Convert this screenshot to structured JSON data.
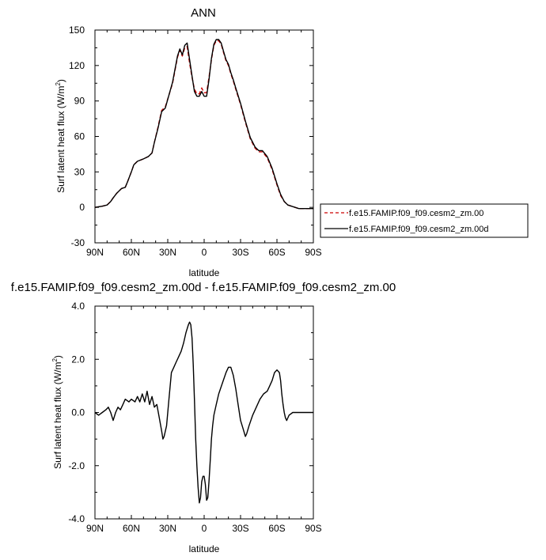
{
  "chart_data": [
    {
      "type": "line",
      "title": "ANN",
      "xlabel": "latitude",
      "ylabel": "Surf latent heat flux (W/m",
      "ylabel_sup": "2",
      "ylabel_close": ")",
      "xlim": [
        90,
        -90
      ],
      "ylim": [
        -30,
        150
      ],
      "xticks": [
        90,
        60,
        30,
        0,
        -30,
        -60,
        -90
      ],
      "xtick_labels": [
        "90N",
        "60N",
        "30N",
        "0",
        "30S",
        "60S",
        "90S"
      ],
      "yticks": [
        -30,
        0,
        30,
        60,
        90,
        120,
        150
      ],
      "ytick_labels": [
        "-30",
        "0",
        "30",
        "60",
        "90",
        "120",
        "150"
      ],
      "legend_position": "right",
      "series": [
        {
          "name": "f.e15.FAMIP.f09_f09.cesm2_zm.00",
          "color": "#cc0000",
          "dash": "dashed",
          "x": [
            90,
            84,
            80,
            77,
            75,
            72,
            68,
            65,
            63,
            60,
            58,
            55,
            50,
            46,
            43,
            41,
            38,
            35,
            32,
            29,
            26,
            24,
            22,
            20,
            18,
            16,
            14,
            12,
            10,
            8,
            6,
            4,
            2,
            0,
            -2,
            -4,
            -6,
            -8,
            -10,
            -12,
            -14,
            -16,
            -18,
            -20,
            -22,
            -24,
            -26,
            -30,
            -34,
            -38,
            -42,
            -45,
            -48,
            -52,
            -56,
            -60,
            -63,
            -66,
            -69,
            -72,
            -75,
            -78,
            -81,
            -84,
            -90
          ],
          "y": [
            0,
            1,
            2,
            5,
            8,
            12,
            16,
            17,
            22,
            30,
            36,
            39,
            41,
            43,
            46,
            55,
            68,
            82,
            85,
            95,
            105,
            116,
            127,
            133,
            128,
            135,
            136,
            122,
            110,
            100,
            96,
            96,
            101,
            97,
            97,
            110,
            125,
            137,
            141,
            141,
            138,
            131,
            124,
            120,
            113,
            107,
            100,
            87,
            72,
            58,
            50,
            47,
            47,
            42,
            32,
            19,
            10,
            5,
            2,
            1,
            0,
            -1,
            -1,
            -1,
            -1
          ]
        },
        {
          "name": "f.e15.FAMIP.f09_f09.cesm2_zm.00d",
          "color": "#000000",
          "dash": "solid",
          "x": [
            90,
            84,
            80,
            77,
            75,
            72,
            68,
            65,
            63,
            60,
            58,
            55,
            50,
            46,
            43,
            41,
            38,
            35,
            32,
            29,
            26,
            24,
            22,
            20,
            18,
            16,
            14,
            12,
            10,
            8,
            6,
            4,
            2,
            0,
            -2,
            -4,
            -6,
            -8,
            -10,
            -12,
            -14,
            -16,
            -18,
            -20,
            -22,
            -24,
            -26,
            -30,
            -34,
            -38,
            -42,
            -45,
            -48,
            -52,
            -56,
            -60,
            -63,
            -66,
            -69,
            -72,
            -75,
            -78,
            -81,
            -84,
            -90
          ],
          "y": [
            0,
            1,
            2,
            5,
            8,
            12,
            16,
            17,
            22,
            30,
            36,
            39,
            41,
            43,
            46,
            55,
            67,
            81,
            84,
            95,
            106,
            117,
            128,
            134,
            129,
            137,
            139,
            125,
            111,
            98,
            94,
            94,
            98,
            94,
            94,
            108,
            126,
            138,
            142,
            142,
            139,
            132,
            125,
            121,
            114,
            108,
            101,
            88,
            73,
            59,
            51,
            48,
            48,
            43,
            33,
            20,
            11,
            5,
            2,
            1,
            0,
            -1,
            -1,
            -1,
            -1
          ]
        }
      ]
    },
    {
      "type": "line",
      "title": "f.e15.FAMIP.f09_f09.cesm2_zm.00d - f.e15.FAMIP.f09_f09.cesm2_zm.00",
      "xlabel": "latitude",
      "ylabel": "Surf latent heat flux (W/m",
      "ylabel_sup": "2",
      "ylabel_close": ")",
      "xlim": [
        90,
        -90
      ],
      "ylim": [
        -4,
        4
      ],
      "xticks": [
        90,
        60,
        30,
        0,
        -30,
        -60,
        -90
      ],
      "xtick_labels": [
        "90N",
        "60N",
        "30N",
        "0",
        "30S",
        "60S",
        "90S"
      ],
      "yticks": [
        -4,
        -2,
        0,
        2,
        4
      ],
      "ytick_labels": [
        "-4.0",
        "-2.0",
        "0.0",
        "2.0",
        "4.0"
      ],
      "series": [
        {
          "color": "#000000",
          "dash": "solid",
          "x": [
            90,
            87,
            84,
            81,
            79,
            77,
            75,
            73,
            71,
            69,
            67,
            65,
            62,
            60,
            57,
            55,
            53,
            51,
            49,
            47,
            45,
            43,
            41,
            39,
            37,
            35,
            34,
            33,
            31,
            29,
            27,
            25,
            23,
            21,
            19,
            17,
            15,
            13,
            12,
            11,
            10,
            9,
            8,
            7,
            6,
            5,
            4,
            3,
            2,
            1,
            0,
            -1,
            -2,
            -3,
            -4,
            -5,
            -6,
            -7,
            -8,
            -10,
            -12,
            -15,
            -18,
            -20,
            -22,
            -24,
            -26,
            -28,
            -30,
            -32,
            -34,
            -35,
            -37,
            -40,
            -43,
            -46,
            -49,
            -52,
            -54,
            -56,
            -58,
            -60,
            -62,
            -63,
            -64,
            -65,
            -66,
            -67,
            -68,
            -70,
            -73,
            -76,
            -80,
            -85,
            -90
          ],
          "y": [
            0.0,
            -0.1,
            0.0,
            0.1,
            0.2,
            0.0,
            -0.3,
            0.0,
            0.2,
            0.1,
            0.3,
            0.5,
            0.4,
            0.5,
            0.4,
            0.6,
            0.4,
            0.7,
            0.4,
            0.8,
            0.3,
            0.6,
            0.2,
            0.3,
            -0.2,
            -0.7,
            -1.0,
            -0.9,
            -0.5,
            0.5,
            1.5,
            1.7,
            1.9,
            2.1,
            2.3,
            2.6,
            3.0,
            3.3,
            3.4,
            3.3,
            2.8,
            1.8,
            0.5,
            -1.0,
            -2.0,
            -2.8,
            -3.4,
            -3.2,
            -2.6,
            -2.4,
            -2.4,
            -2.7,
            -3.3,
            -3.2,
            -2.6,
            -1.8,
            -1.0,
            -0.5,
            -0.1,
            0.3,
            0.7,
            1.1,
            1.5,
            1.7,
            1.7,
            1.4,
            0.9,
            0.3,
            -0.3,
            -0.6,
            -0.9,
            -0.8,
            -0.5,
            -0.1,
            0.2,
            0.5,
            0.7,
            0.8,
            1.0,
            1.2,
            1.5,
            1.6,
            1.5,
            1.2,
            0.7,
            0.3,
            0.0,
            -0.2,
            -0.3,
            -0.1,
            0.0,
            0.0,
            0.0,
            0.0,
            0.0
          ]
        }
      ]
    }
  ]
}
